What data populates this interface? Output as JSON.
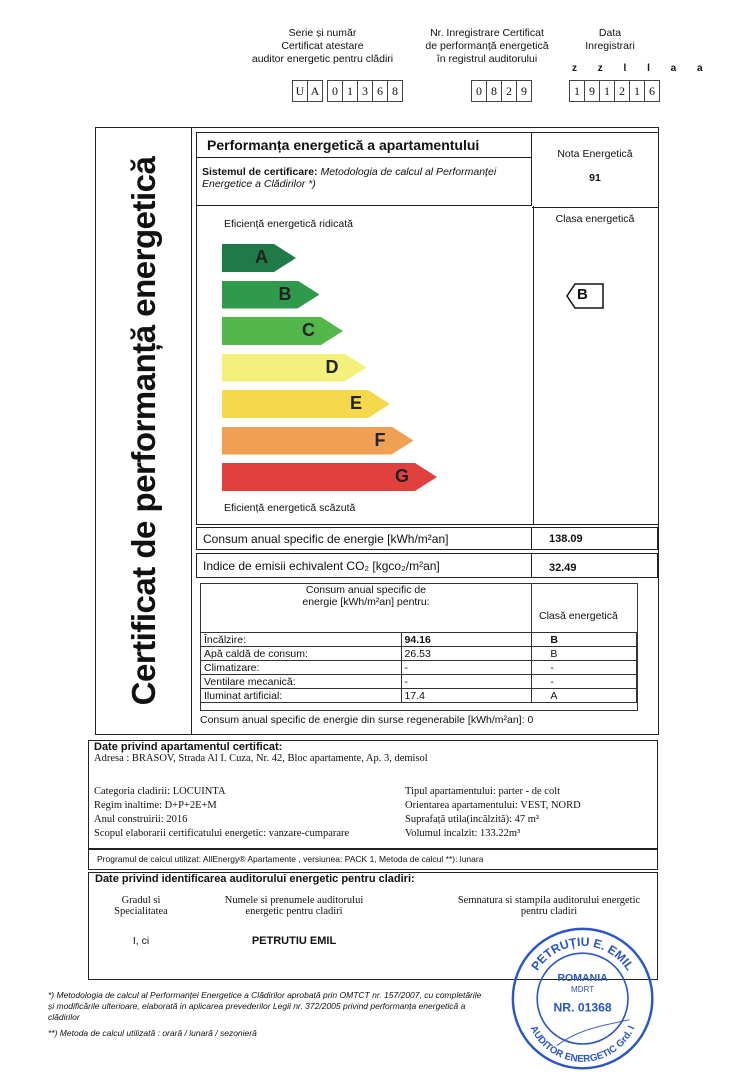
{
  "header": {
    "serie_label": [
      "Serie și număr",
      "Certificat atestare",
      "auditor energetic pentru clădiri"
    ],
    "serie_letters": [
      "U",
      "A"
    ],
    "serie_digits": [
      "0",
      "1",
      "3",
      "6",
      "8"
    ],
    "reg_label": [
      "Nr. Inregistrare Certificat",
      "de performanță energetică",
      "în registrul auditorului"
    ],
    "reg_digits": [
      "0",
      "8",
      "2",
      "9"
    ],
    "date_label": [
      "Data",
      "Inregistrari"
    ],
    "date_format": "z z l l a a",
    "date_digits": [
      "1",
      "9",
      "1",
      "2",
      "1",
      "6"
    ]
  },
  "vertical_title": "Certificat de performanță energetică",
  "performance": {
    "title": "Performanța energetică a apartamentului",
    "system_label": "Sistemul de certificare:",
    "system_value": "Metodologia de calcul al Performanței Energetice a Clădirilor *)",
    "nota_label": "Nota Energetică",
    "nota_value": "91",
    "high_label": "Eficiență energetică ridicată",
    "low_label": "Eficiență energetică scăzută",
    "clasa_label": "Clasa energetică",
    "clasa_value": "B",
    "classes": [
      {
        "letter": "A",
        "color": "#1f7a47"
      },
      {
        "letter": "B",
        "color": "#2f9a4c"
      },
      {
        "letter": "C",
        "color": "#52b84a"
      },
      {
        "letter": "D",
        "color": "#f3f07c"
      },
      {
        "letter": "E",
        "color": "#f5d84c"
      },
      {
        "letter": "F",
        "color": "#f0a052"
      },
      {
        "letter": "G",
        "color": "#e0403e"
      }
    ],
    "consum_label": "Consum anual specific de energie  [kWh/m²an]",
    "consum_value": "138.09",
    "co2_label": "Indice de emisii echivalent CO₂   [kgco₂/m²an]",
    "co2_value": "32.49",
    "sub_header": "Consum anual specific de energie [kWh/m²an] pentru:",
    "sub_class_header": "Clasă energetică",
    "rows": [
      {
        "name": "Încălzire:",
        "value": "94.16",
        "class": "B"
      },
      {
        "name": "Apă caldă de consum:",
        "value": "26.53",
        "class": "B"
      },
      {
        "name": "Climatizare:",
        "value": "-",
        "class": "-"
      },
      {
        "name": "Ventilare mecanică:",
        "value": "-",
        "class": "-"
      },
      {
        "name": "Iluminat artificial:",
        "value": "17.4",
        "class": "A"
      }
    ],
    "regen_label": "Consum anual specific de energie din surse regenerabile [kWh/m²an]:",
    "regen_value": "0"
  },
  "apartment": {
    "title": "Date privind apartamentul certificat:",
    "address": "Adresa : BRASOV, Strada Al I. Cuza, Nr. 42, Bloc apartamente, Ap. 3, demisol",
    "left": [
      "Categoria cladirii: LOCUINTA",
      "Regim inaltime: D+P+2E+M",
      "Anul construirii: 2016",
      "Scopul elaborarii certificatului energetic: vanzare-cumparare"
    ],
    "right": [
      "Tipul apartamentului:   parter - de colt",
      "Orientarea apartamentului:  VEST, NORD",
      "Suprafață utila(incălzită): 47 m²",
      "Volumul incalzit: 133.22m³"
    ],
    "program": "Programul de calcul utilizat: AllEnergy® Apartamente ,   versiunea: PACK 1,    Metoda de calcul **): lunara"
  },
  "auditor": {
    "title": "Date privind identificarea auditorului energetic pentru cladiri:",
    "grade_label": "Gradul si Specialitatea",
    "name_label": "Numele si prenumele auditorului energetic pentru cladiri",
    "sign_label": "Semnatura si stampila auditorului energetic pentru cladiri",
    "grade": "I, ci",
    "name": "PETRUTIU EMIL",
    "stamp": {
      "top": "PETRUȚIU E. EMIL",
      "mid": "ROMANIA",
      "sub": "MDRT",
      "nr": "NR. 01368",
      "bottom": "AUDITOR ENERGETIC Grd. I",
      "color": "#2a55c8"
    }
  },
  "footnotes": [
    "*) Metodologia de calcul al Performanței Energetice a Clădirilor aprobată prin OMTCT nr. 157/2007, cu completările și modificările ulterioare, elaborată in aplicarea prevederilor Legii nr. 372/2005 privind performanța energetică a clădirilor",
    "**) Metoda de calcul utilizată : orară / lunară / sezonieră"
  ]
}
